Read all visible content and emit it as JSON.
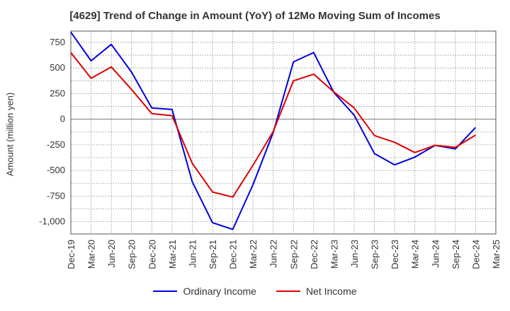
{
  "chart_data": {
    "type": "line",
    "title": "[4629]  Trend of Change in Amount (YoY) of 12Mo Moving Sum of Incomes",
    "xlabel": "",
    "ylabel": "Amount (million yen)",
    "ylim": [
      -1120,
      860
    ],
    "yticks": [
      750,
      500,
      250,
      0,
      -250,
      -500,
      -750,
      -1000
    ],
    "ytick_labels": [
      "750",
      "500",
      "250",
      "0",
      "-250",
      "-500",
      "-750",
      "-1,000"
    ],
    "categories": [
      "Dec-19",
      "Mar-20",
      "Jun-20",
      "Sep-20",
      "Dec-20",
      "Mar-21",
      "Jun-21",
      "Sep-21",
      "Dec-21",
      "Mar-22",
      "Jun-22",
      "Sep-22",
      "Dec-22",
      "Mar-23",
      "Jun-23",
      "Sep-23",
      "Dec-23",
      "Mar-24",
      "Jun-24",
      "Sep-24",
      "Dec-24",
      "Mar-25"
    ],
    "grid": true,
    "legend_position": "bottom",
    "series": [
      {
        "name": "Ordinary Income",
        "color": "#0000dd",
        "values": [
          850,
          570,
          730,
          460,
          110,
          95,
          -610,
          -1010,
          -1075,
          -640,
          -130,
          560,
          650,
          260,
          40,
          -335,
          -445,
          -370,
          -255,
          -290,
          -80,
          null
        ]
      },
      {
        "name": "Net Income",
        "color": "#dd0000",
        "values": [
          650,
          400,
          510,
          290,
          55,
          35,
          -430,
          -710,
          -760,
          -450,
          -120,
          375,
          440,
          265,
          110,
          -160,
          -225,
          -325,
          -255,
          -275,
          -155,
          null
        ]
      }
    ]
  }
}
